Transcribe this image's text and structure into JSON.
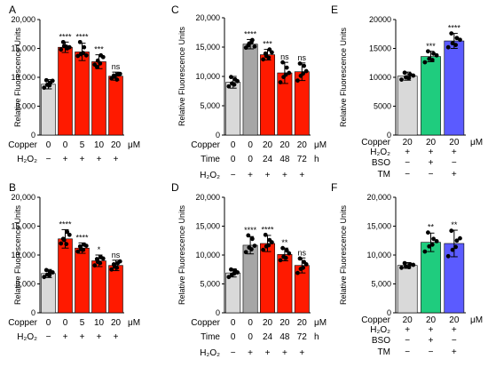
{
  "chart_data": [
    {
      "panel": "A",
      "type": "bar",
      "ylabel": "Relative Fluorescence Units",
      "ylim": [
        0,
        20000
      ],
      "yticks": [
        "0",
        "5,000",
        "10,000",
        "15,000",
        "20,000"
      ],
      "values": [
        8800,
        15200,
        14400,
        12700,
        10200
      ],
      "errors": [
        800,
        900,
        1500,
        1200,
        700
      ],
      "colors": [
        "#d9d9d9",
        "#ff1a00",
        "#ff1a00",
        "#ff1a00",
        "#ff1a00"
      ],
      "significance": [
        "",
        "****",
        "****",
        "***",
        "ns"
      ],
      "points": [
        [
          8200,
          8700,
          9100,
          9500,
          8600,
          9400
        ],
        [
          14800,
          15400,
          15000,
          16100,
          15300,
          15200
        ],
        [
          13700,
          14000,
          15200,
          16100,
          14200,
          13800
        ],
        [
          12200,
          12900,
          13800,
          11800,
          12400,
          13500
        ],
        [
          9800,
          10100,
          10500,
          10300,
          9600,
          10600
        ]
      ],
      "rows": [
        {
          "label": "Copper",
          "values": [
            "0",
            "0",
            "5",
            "10",
            "20"
          ],
          "unit": "μM"
        },
        {
          "label": "H₂O₂",
          "values": [
            "−",
            "+",
            "+",
            "+",
            "+"
          ],
          "unit": ""
        }
      ]
    },
    {
      "panel": "B",
      "type": "bar",
      "ylabel": "Relative Fluorescence Units",
      "ylim": [
        0,
        20000
      ],
      "yticks": [
        "0",
        "5,000",
        "10,000",
        "15,000",
        "20,000"
      ],
      "values": [
        6800,
        12800,
        11200,
        9000,
        8200
      ],
      "errors": [
        700,
        1600,
        900,
        1000,
        900
      ],
      "colors": [
        "#d9d9d9",
        "#ff1a00",
        "#ff1a00",
        "#ff1a00",
        "#ff1a00"
      ],
      "significance": [
        "",
        "****",
        "****",
        "*",
        "ns"
      ],
      "points": [
        [
          6200,
          6600,
          7100,
          7400,
          6500,
          7000
        ],
        [
          12000,
          12600,
          14000,
          12800,
          11900,
          13500
        ],
        [
          10600,
          11000,
          11800,
          11500,
          10900,
          11600
        ],
        [
          8200,
          8800,
          9600,
          9300,
          8600,
          9400
        ],
        [
          7500,
          8000,
          8600,
          8400,
          7800,
          8900
        ]
      ],
      "rows": [
        {
          "label": "Copper",
          "values": [
            "0",
            "0",
            "5",
            "10",
            "20"
          ],
          "unit": "μM"
        },
        {
          "label": "H₂O₂",
          "values": [
            "−",
            "+",
            "+",
            "+",
            "+"
          ],
          "unit": ""
        }
      ]
    },
    {
      "panel": "C",
      "type": "bar",
      "ylabel": "Relative Fluorescence Units",
      "ylim": [
        0,
        20000
      ],
      "yticks": [
        "0",
        "5,000",
        "10,000",
        "15,000",
        "20,000"
      ],
      "values": [
        9000,
        15500,
        13700,
        10600,
        10800
      ],
      "errors": [
        1000,
        800,
        900,
        1800,
        1500
      ],
      "colors": [
        "#d9d9d9",
        "#a6a6a6",
        "#ff1a00",
        "#ff1a00",
        "#ff1a00"
      ],
      "significance": [
        "",
        "****",
        "***",
        "ns",
        "ns"
      ],
      "points": [
        [
          8300,
          8800,
          9500,
          9900,
          8600,
          9200
        ],
        [
          14900,
          15600,
          16200,
          15300,
          15800,
          15100
        ],
        [
          12900,
          13500,
          14600,
          13900,
          13200,
          14100
        ],
        [
          9000,
          9900,
          11500,
          12400,
          10300,
          10600
        ],
        [
          9300,
          10100,
          11800,
          12200,
          10500,
          10900
        ]
      ],
      "rows": [
        {
          "label": "Copper",
          "values": [
            "0",
            "0",
            "20",
            "20",
            "20"
          ],
          "unit": "μM"
        },
        {
          "label": "Time",
          "values": [
            "0",
            "0",
            "24",
            "48",
            "72"
          ],
          "unit": "h"
        },
        {
          "label": "H₂O₂",
          "values": [
            "−",
            "+",
            "+",
            "+",
            "+"
          ],
          "unit": ""
        }
      ]
    },
    {
      "panel": "D",
      "type": "bar",
      "ylabel": "Relative Fluorescence Units",
      "ylim": [
        0,
        20000
      ],
      "yticks": [
        "0",
        "5,000",
        "10,000",
        "15,000",
        "20,000"
      ],
      "values": [
        6900,
        11700,
        12000,
        10100,
        8200
      ],
      "errors": [
        700,
        1500,
        1400,
        1100,
        1300
      ],
      "colors": [
        "#d9d9d9",
        "#a6a6a6",
        "#ff1a00",
        "#ff1a00",
        "#ff1a00"
      ],
      "significance": [
        "",
        "****",
        "****",
        "**",
        "ns"
      ],
      "points": [
        [
          6200,
          6600,
          7300,
          7500,
          6800,
          7000
        ],
        [
          10500,
          11300,
          12800,
          13400,
          11000,
          11600
        ],
        [
          10900,
          11500,
          12600,
          13500,
          11700,
          12200
        ],
        [
          9100,
          9700,
          10800,
          11200,
          9500,
          10300
        ],
        [
          6900,
          7600,
          8800,
          9400,
          7800,
          8400
        ]
      ],
      "rows": [
        {
          "label": "Copper",
          "values": [
            "0",
            "0",
            "20",
            "20",
            "20"
          ],
          "unit": "μM"
        },
        {
          "label": "Time",
          "values": [
            "0",
            "0",
            "24",
            "48",
            "72"
          ],
          "unit": "h"
        },
        {
          "label": "H₂O₂",
          "values": [
            "−",
            "+",
            "+",
            "+",
            "+"
          ],
          "unit": ""
        }
      ]
    },
    {
      "panel": "E",
      "type": "bar",
      "ylabel": "Relative Fluorescence Units",
      "ylim": [
        0,
        20000
      ],
      "yticks": [
        "0",
        "5000",
        "10000",
        "15000",
        "20000"
      ],
      "values": [
        10200,
        13600,
        16300
      ],
      "errors": [
        700,
        900,
        1300
      ],
      "colors": [
        "#d9d9d9",
        "#1fcc7e",
        "#5b5bff"
      ],
      "significance": [
        "",
        "***",
        "****"
      ],
      "points": [
        [
          9600,
          10000,
          10500,
          10800,
          9900,
          10300
        ],
        [
          12600,
          13200,
          14100,
          14500,
          13000,
          13800
        ],
        [
          15200,
          15900,
          16800,
          17600,
          15600,
          16500
        ]
      ],
      "rows": [
        {
          "label": "Copper",
          "values": [
            "20",
            "20",
            "20"
          ],
          "unit": "μM"
        },
        {
          "label": "H₂O₂",
          "values": [
            "+",
            "+",
            "+"
          ],
          "unit": ""
        },
        {
          "label": "BSO",
          "values": [
            "−",
            "+",
            "−"
          ],
          "unit": ""
        },
        {
          "label": "TM",
          "values": [
            "−",
            "−",
            "+"
          ],
          "unit": ""
        }
      ]
    },
    {
      "panel": "F",
      "type": "bar",
      "ylabel": "Relative Fluorescence Units",
      "ylim": [
        0,
        20000
      ],
      "yticks": [
        "0",
        "5,000",
        "10,000",
        "15,000",
        "20,000"
      ],
      "values": [
        8200,
        12200,
        12000
      ],
      "errors": [
        500,
        1600,
        2300
      ],
      "colors": [
        "#d9d9d9",
        "#1fcc7e",
        "#5b5bff"
      ],
      "significance": [
        "",
        "**",
        "**"
      ],
      "points": [
        [
          7800,
          8000,
          8400,
          8600,
          7900,
          8300
        ],
        [
          10600,
          11500,
          12800,
          13900,
          11800,
          12400
        ],
        [
          9800,
          10900,
          12500,
          14200,
          11400,
          12900
        ]
      ],
      "rows": [
        {
          "label": "Copper",
          "values": [
            "20",
            "20",
            "20"
          ],
          "unit": "μM"
        },
        {
          "label": "H₂O₂",
          "values": [
            "+",
            "+",
            "+"
          ],
          "unit": ""
        },
        {
          "label": "BSO",
          "values": [
            "−",
            "+",
            "−"
          ],
          "unit": ""
        },
        {
          "label": "TM",
          "values": [
            "−",
            "−",
            "+"
          ],
          "unit": ""
        }
      ]
    }
  ]
}
